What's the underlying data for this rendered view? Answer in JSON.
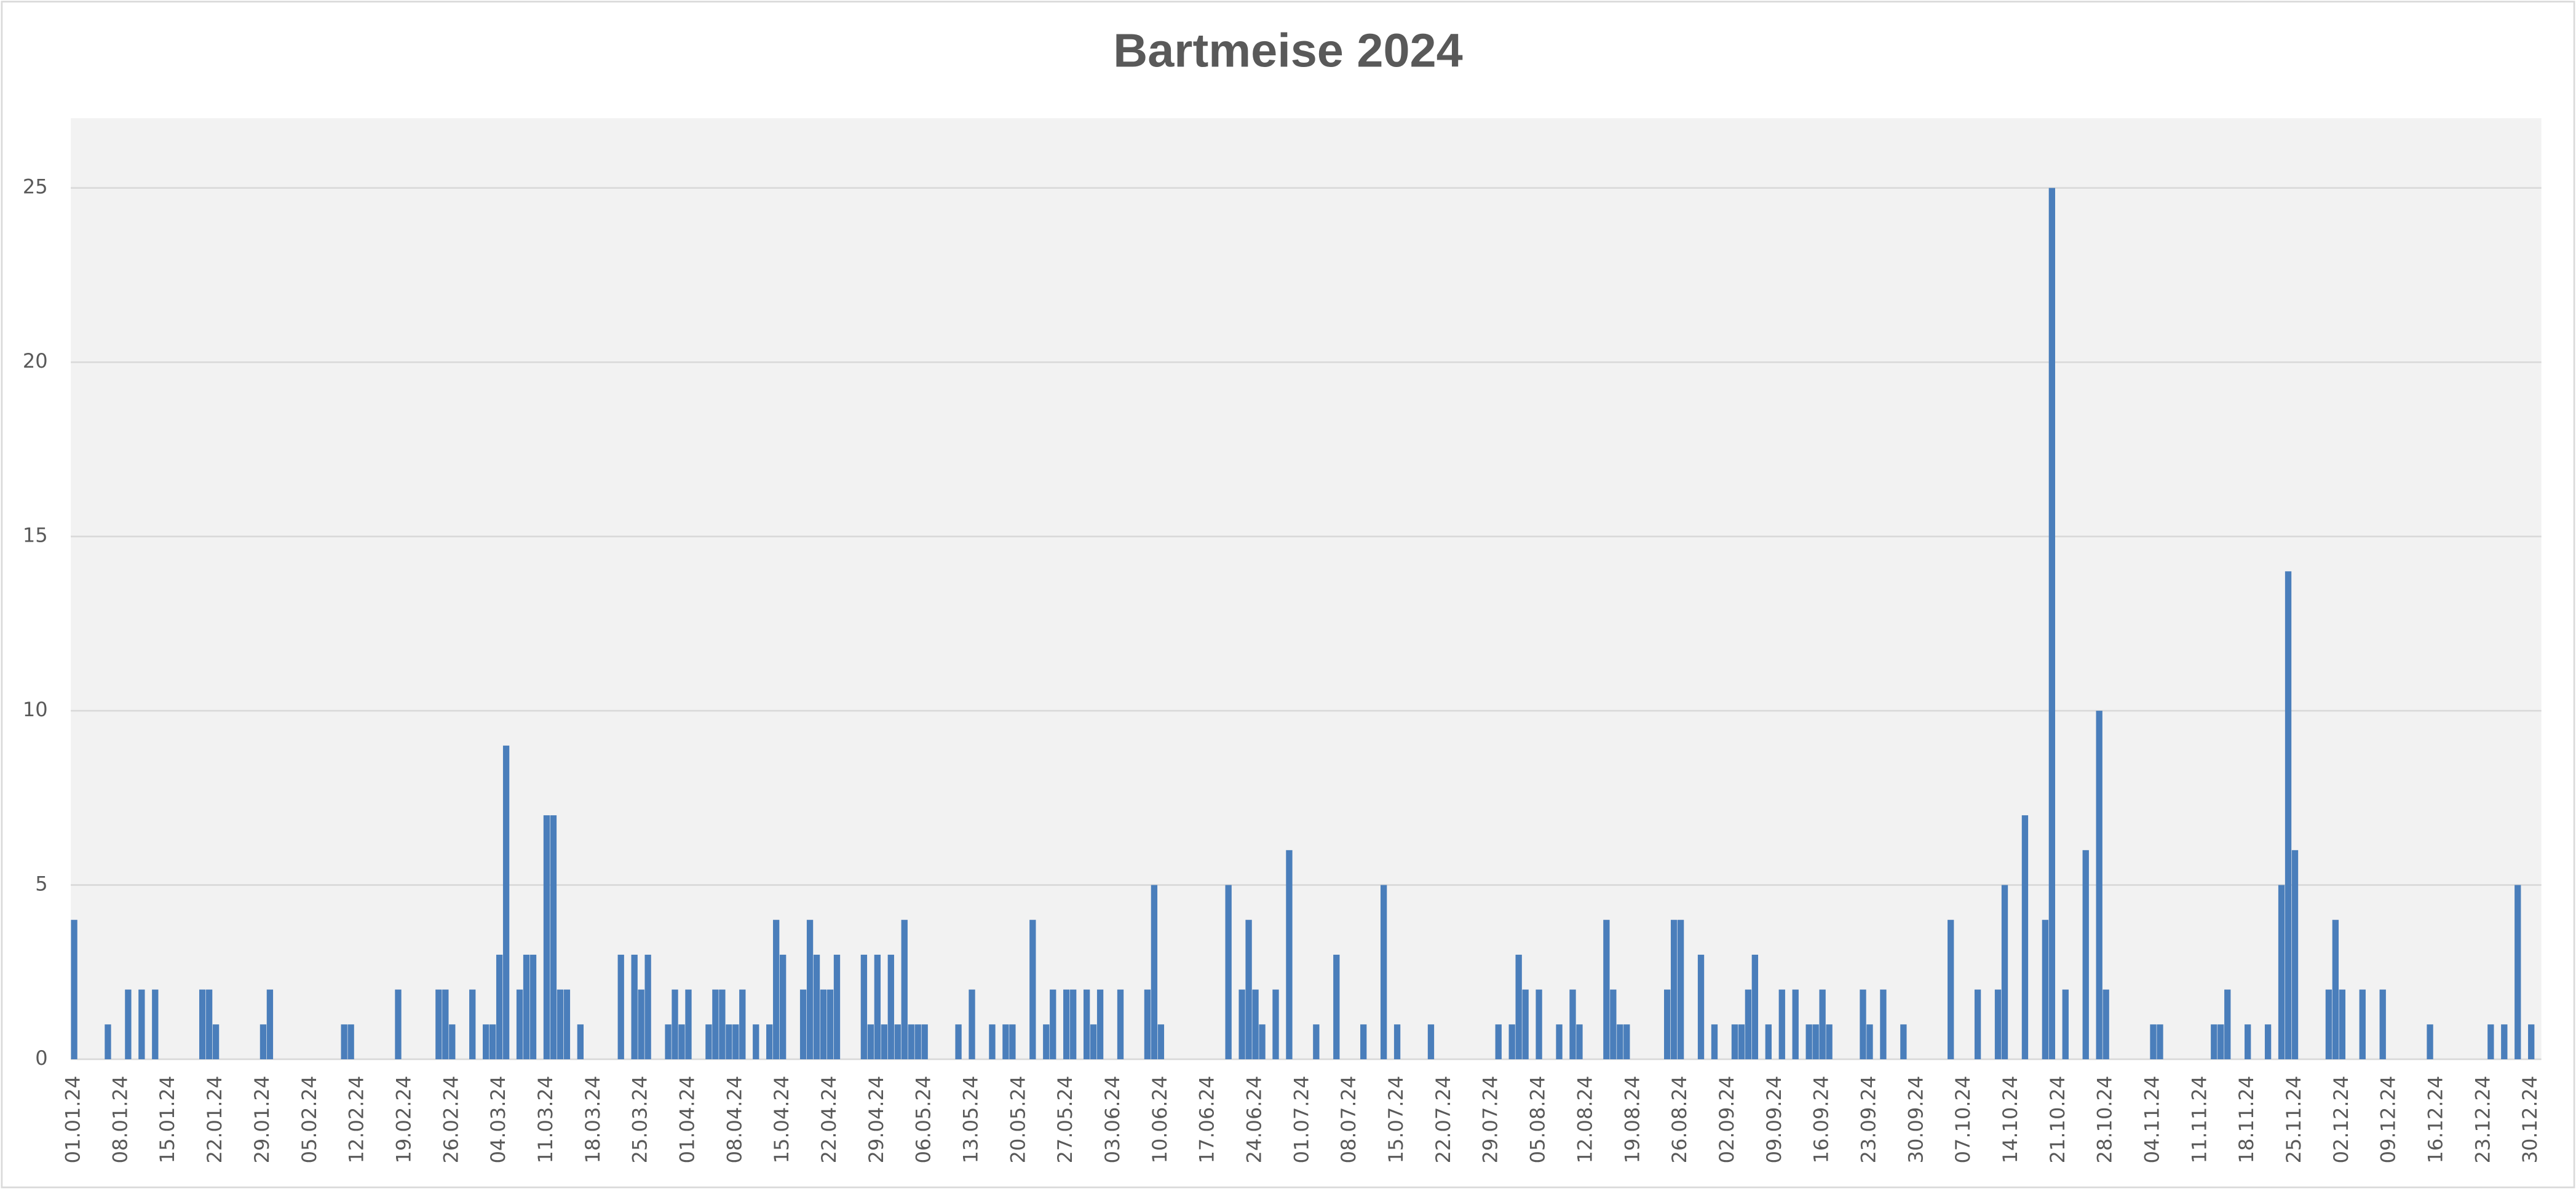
{
  "chart_data": {
    "type": "bar",
    "title": "Bartmeise 2024",
    "color": "#4a7ebb",
    "grid": true,
    "ylim": [
      0,
      27
    ],
    "yticks": [
      0,
      5,
      10,
      15,
      20,
      25
    ],
    "categories": [
      "01.01.24",
      null,
      null,
      null,
      null,
      null,
      null,
      "08.01.24",
      null,
      null,
      null,
      null,
      null,
      null,
      "15.01.24",
      null,
      null,
      null,
      null,
      null,
      null,
      "22.01.24",
      null,
      null,
      null,
      null,
      null,
      null,
      "29.01.24",
      null,
      null,
      null,
      null,
      null,
      null,
      "05.02.24",
      null,
      null,
      null,
      null,
      null,
      null,
      "12.02.24",
      null,
      null,
      null,
      null,
      null,
      null,
      "19.02.24",
      null,
      null,
      null,
      null,
      null,
      null,
      "26.02.24",
      null,
      null,
      null,
      null,
      null,
      null,
      "04.03.24",
      null,
      null,
      null,
      null,
      null,
      null,
      "11.03.24",
      null,
      null,
      null,
      null,
      null,
      null,
      "18.03.24",
      null,
      null,
      null,
      null,
      null,
      null,
      "25.03.24",
      null,
      null,
      null,
      null,
      null,
      null,
      "01.04.24",
      null,
      null,
      null,
      null,
      null,
      null,
      "08.04.24",
      null,
      null,
      null,
      null,
      null,
      null,
      "15.04.24",
      null,
      null,
      null,
      null,
      null,
      null,
      "22.04.24",
      null,
      null,
      null,
      null,
      null,
      null,
      "29.04.24",
      null,
      null,
      null,
      null,
      null,
      null,
      "06.05.24",
      null,
      null,
      null,
      null,
      null,
      null,
      "13.05.24",
      null,
      null,
      null,
      null,
      null,
      null,
      "20.05.24",
      null,
      null,
      null,
      null,
      null,
      null,
      "27.05.24",
      null,
      null,
      null,
      null,
      null,
      null,
      "03.06.24",
      null,
      null,
      null,
      null,
      null,
      null,
      "10.06.24",
      null,
      null,
      null,
      null,
      null,
      null,
      "17.06.24",
      null,
      null,
      null,
      null,
      null,
      null,
      "24.06.24",
      null,
      null,
      null,
      null,
      null,
      null,
      "01.07.24",
      null,
      null,
      null,
      null,
      null,
      null,
      "08.07.24",
      null,
      null,
      null,
      null,
      null,
      null,
      "15.07.24",
      null,
      null,
      null,
      null,
      null,
      null,
      "22.07.24",
      null,
      null,
      null,
      null,
      null,
      null,
      "29.07.24",
      null,
      null,
      null,
      null,
      null,
      null,
      "05.08.24",
      null,
      null,
      null,
      null,
      null,
      null,
      "12.08.24",
      null,
      null,
      null,
      null,
      null,
      null,
      "19.08.24",
      null,
      null,
      null,
      null,
      null,
      null,
      "26.08.24",
      null,
      null,
      null,
      null,
      null,
      null,
      "02.09.24",
      null,
      null,
      null,
      null,
      null,
      null,
      "09.09.24",
      null,
      null,
      null,
      null,
      null,
      null,
      "16.09.24",
      null,
      null,
      null,
      null,
      null,
      null,
      "23.09.24",
      null,
      null,
      null,
      null,
      null,
      null,
      "30.09.24",
      null,
      null,
      null,
      null,
      null,
      null,
      "07.10.24",
      null,
      null,
      null,
      null,
      null,
      null,
      "14.10.24",
      null,
      null,
      null,
      null,
      null,
      null,
      "21.10.24",
      null,
      null,
      null,
      null,
      null,
      null,
      "28.10.24",
      null,
      null,
      null,
      null,
      null,
      null,
      "04.11.24",
      null,
      null,
      null,
      null,
      null,
      null,
      "11.11.24",
      null,
      null,
      null,
      null,
      null,
      null,
      "18.11.24",
      null,
      null,
      null,
      null,
      null,
      null,
      "25.11.24",
      null,
      null,
      null,
      null,
      null,
      null,
      "02.12.24",
      null,
      null,
      null,
      null,
      null,
      null,
      "09.12.24",
      null,
      null,
      null,
      null,
      null,
      null,
      "16.12.24",
      null,
      null,
      null,
      null,
      null,
      null,
      "23.12.24",
      null,
      null,
      null,
      null,
      null,
      null,
      "30.12.24",
      null
    ],
    "values": [
      4,
      0,
      0,
      0,
      0,
      1,
      0,
      0,
      2,
      0,
      2,
      0,
      2,
      0,
      0,
      0,
      0,
      0,
      0,
      2,
      2,
      1,
      0,
      0,
      0,
      0,
      0,
      0,
      1,
      2,
      0,
      0,
      0,
      0,
      0,
      0,
      0,
      0,
      0,
      0,
      1,
      1,
      0,
      0,
      0,
      0,
      0,
      0,
      2,
      0,
      0,
      0,
      0,
      0,
      2,
      2,
      1,
      0,
      0,
      2,
      0,
      1,
      1,
      3,
      9,
      0,
      2,
      3,
      3,
      0,
      7,
      7,
      2,
      2,
      0,
      1,
      0,
      0,
      0,
      0,
      0,
      3,
      0,
      3,
      2,
      3,
      0,
      0,
      1,
      2,
      1,
      2,
      0,
      0,
      1,
      2,
      2,
      1,
      1,
      2,
      0,
      1,
      0,
      1,
      4,
      3,
      0,
      0,
      2,
      4,
      3,
      2,
      2,
      3,
      0,
      0,
      0,
      3,
      1,
      3,
      1,
      3,
      1,
      4,
      1,
      1,
      1,
      0,
      0,
      0,
      0,
      1,
      0,
      2,
      0,
      0,
      1,
      0,
      1,
      1,
      0,
      0,
      4,
      0,
      1,
      2,
      0,
      2,
      2,
      0,
      2,
      1,
      2,
      0,
      0,
      2,
      0,
      0,
      0,
      2,
      5,
      1,
      0,
      0,
      0,
      0,
      0,
      0,
      0,
      0,
      0,
      5,
      0,
      2,
      4,
      2,
      1,
      0,
      2,
      0,
      6,
      0,
      0,
      0,
      1,
      0,
      0,
      3,
      0,
      0,
      0,
      1,
      0,
      0,
      5,
      0,
      1,
      0,
      0,
      0,
      0,
      1,
      0,
      0,
      0,
      0,
      0,
      0,
      0,
      0,
      0,
      1,
      0,
      1,
      3,
      2,
      0,
      2,
      0,
      0,
      1,
      0,
      2,
      1,
      0,
      0,
      0,
      4,
      2,
      1,
      1,
      0,
      0,
      0,
      0,
      0,
      2,
      4,
      4,
      0,
      0,
      3,
      0,
      1,
      0,
      0,
      1,
      1,
      2,
      3,
      0,
      1,
      0,
      2,
      0,
      2,
      0,
      1,
      1,
      2,
      1,
      0,
      0,
      0,
      0,
      2,
      1,
      0,
      2,
      0,
      0,
      1,
      0,
      0,
      0,
      0,
      0,
      0,
      4,
      0,
      0,
      0,
      2,
      0,
      0,
      2,
      5,
      0,
      0,
      7,
      0,
      0,
      4,
      25,
      0,
      2,
      0,
      0,
      6,
      0,
      10,
      2,
      0,
      0,
      0,
      0,
      0,
      0,
      1,
      1,
      0,
      0,
      0,
      0,
      0,
      0,
      0,
      1,
      1,
      2,
      0,
      0,
      1,
      0,
      0,
      1,
      0,
      5,
      14,
      6,
      0,
      0,
      0,
      0,
      2,
      4,
      2,
      0,
      0,
      2,
      0,
      0,
      2,
      0,
      0,
      0,
      0,
      0,
      0,
      1,
      0,
      0,
      0,
      0,
      0,
      0,
      0,
      0,
      1,
      0,
      1,
      0,
      5,
      0,
      1,
      0
    ]
  }
}
